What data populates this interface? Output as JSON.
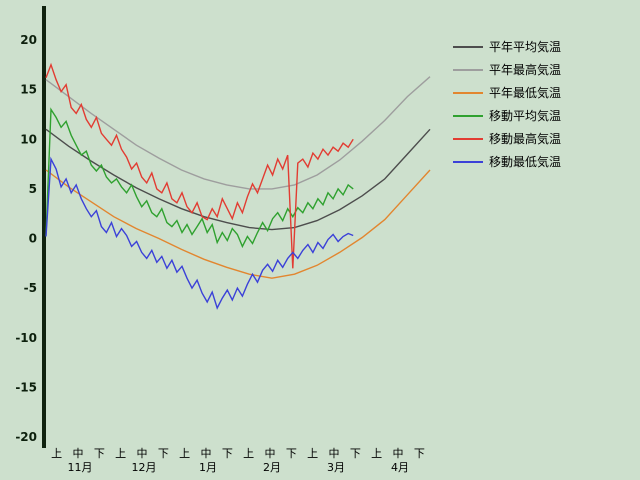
{
  "background_color": "#cde0cd",
  "axis_color": "#10230f",
  "chart_data": {
    "type": "line",
    "title": "",
    "grid": false,
    "legend_position": "right",
    "y_axis": {
      "min": -20,
      "max": 20,
      "ticks": [
        20,
        15,
        10,
        5,
        0,
        -5,
        -10,
        -15,
        -20
      ]
    },
    "x_axis": {
      "periods_total": 18,
      "period_labels": [
        "上",
        "中",
        "下"
      ],
      "months": [
        "11月",
        "12月",
        "1月",
        "2月",
        "3月",
        "4月"
      ]
    },
    "series": [
      {
        "name": "平年平均気温",
        "color": "#4d4d4d",
        "x_span": [
          0,
          18
        ],
        "values": [
          11.0,
          9.3,
          7.8,
          6.4,
          5.1,
          4.0,
          3.0,
          2.2,
          1.6,
          1.1,
          0.9,
          1.1,
          1.8,
          2.9,
          4.3,
          6.0,
          8.5,
          11.0
        ]
      },
      {
        "name": "平年最高気温",
        "color": "#9e9e9e",
        "x_span": [
          0,
          18
        ],
        "values": [
          16.0,
          14.3,
          12.6,
          11.0,
          9.4,
          8.1,
          6.9,
          6.0,
          5.4,
          5.0,
          5.0,
          5.4,
          6.4,
          7.9,
          9.8,
          11.9,
          14.3,
          16.3
        ]
      },
      {
        "name": "平年最低気温",
        "color": "#e2862f",
        "x_span": [
          0,
          18
        ],
        "values": [
          6.9,
          5.2,
          3.7,
          2.2,
          1.0,
          0.0,
          -1.1,
          -2.1,
          -2.9,
          -3.6,
          -4.0,
          -3.6,
          -2.7,
          -1.4,
          0.1,
          1.9,
          4.4,
          6.9
        ]
      },
      {
        "name": "移動平均気温",
        "color": "#2fa12f",
        "x_span": [
          0,
          14.4
        ],
        "values": [
          0.3,
          13.0,
          12.2,
          11.2,
          11.8,
          10.4,
          9.4,
          8.4,
          8.8,
          7.4,
          6.8,
          7.4,
          6.2,
          5.6,
          6.0,
          5.2,
          4.6,
          5.4,
          4.2,
          3.2,
          3.8,
          2.6,
          2.2,
          3.0,
          1.6,
          1.2,
          1.8,
          0.6,
          1.4,
          0.4,
          1.2,
          2.0,
          0.6,
          1.4,
          -0.4,
          0.6,
          -0.2,
          1.0,
          0.4,
          -0.8,
          0.2,
          -0.5,
          0.6,
          1.6,
          0.8,
          2.0,
          2.6,
          1.8,
          3.0,
          2.2,
          3.1,
          2.6,
          3.6,
          3.0,
          4.0,
          3.4,
          4.6,
          4.0,
          5.0,
          4.4,
          5.4,
          5.0
        ]
      },
      {
        "name": "移動最高気温",
        "color": "#e23c32",
        "x_span": [
          0,
          14.4
        ],
        "values": [
          16.2,
          17.5,
          16.0,
          14.8,
          15.5,
          13.2,
          12.6,
          13.5,
          12.0,
          11.2,
          12.2,
          10.6,
          10.0,
          9.4,
          10.4,
          9.0,
          8.2,
          7.0,
          7.6,
          6.2,
          5.6,
          6.6,
          5.0,
          4.6,
          5.6,
          4.0,
          3.6,
          4.6,
          3.2,
          2.6,
          3.6,
          2.2,
          1.9,
          3.0,
          2.2,
          4.0,
          3.0,
          2.0,
          3.6,
          2.6,
          4.2,
          5.5,
          4.6,
          6.0,
          7.4,
          6.4,
          8.0,
          7.0,
          8.4,
          -3.0,
          7.6,
          8.0,
          7.2,
          8.6,
          8.0,
          9.0,
          8.4,
          9.2,
          8.8,
          9.6,
          9.2,
          10.0
        ]
      },
      {
        "name": "移動最低気温",
        "color": "#3b41d8",
        "x_span": [
          0,
          14.4
        ],
        "values": [
          0.2,
          8.0,
          7.0,
          5.2,
          6.0,
          4.6,
          5.4,
          4.0,
          3.0,
          2.2,
          2.8,
          1.2,
          0.6,
          1.6,
          0.2,
          1.0,
          0.3,
          -0.8,
          -0.3,
          -1.4,
          -2.0,
          -1.2,
          -2.4,
          -1.8,
          -3.0,
          -2.2,
          -3.4,
          -2.8,
          -4.0,
          -5.0,
          -4.2,
          -5.5,
          -6.4,
          -5.4,
          -7.0,
          -6.0,
          -5.2,
          -6.2,
          -5.0,
          -5.8,
          -4.6,
          -3.6,
          -4.4,
          -3.2,
          -2.6,
          -3.3,
          -2.2,
          -2.9,
          -2.0,
          -1.4,
          -2.0,
          -1.2,
          -0.6,
          -1.4,
          -0.4,
          -1.0,
          -0.1,
          0.4,
          -0.3,
          0.2,
          0.5,
          0.3
        ]
      }
    ]
  }
}
